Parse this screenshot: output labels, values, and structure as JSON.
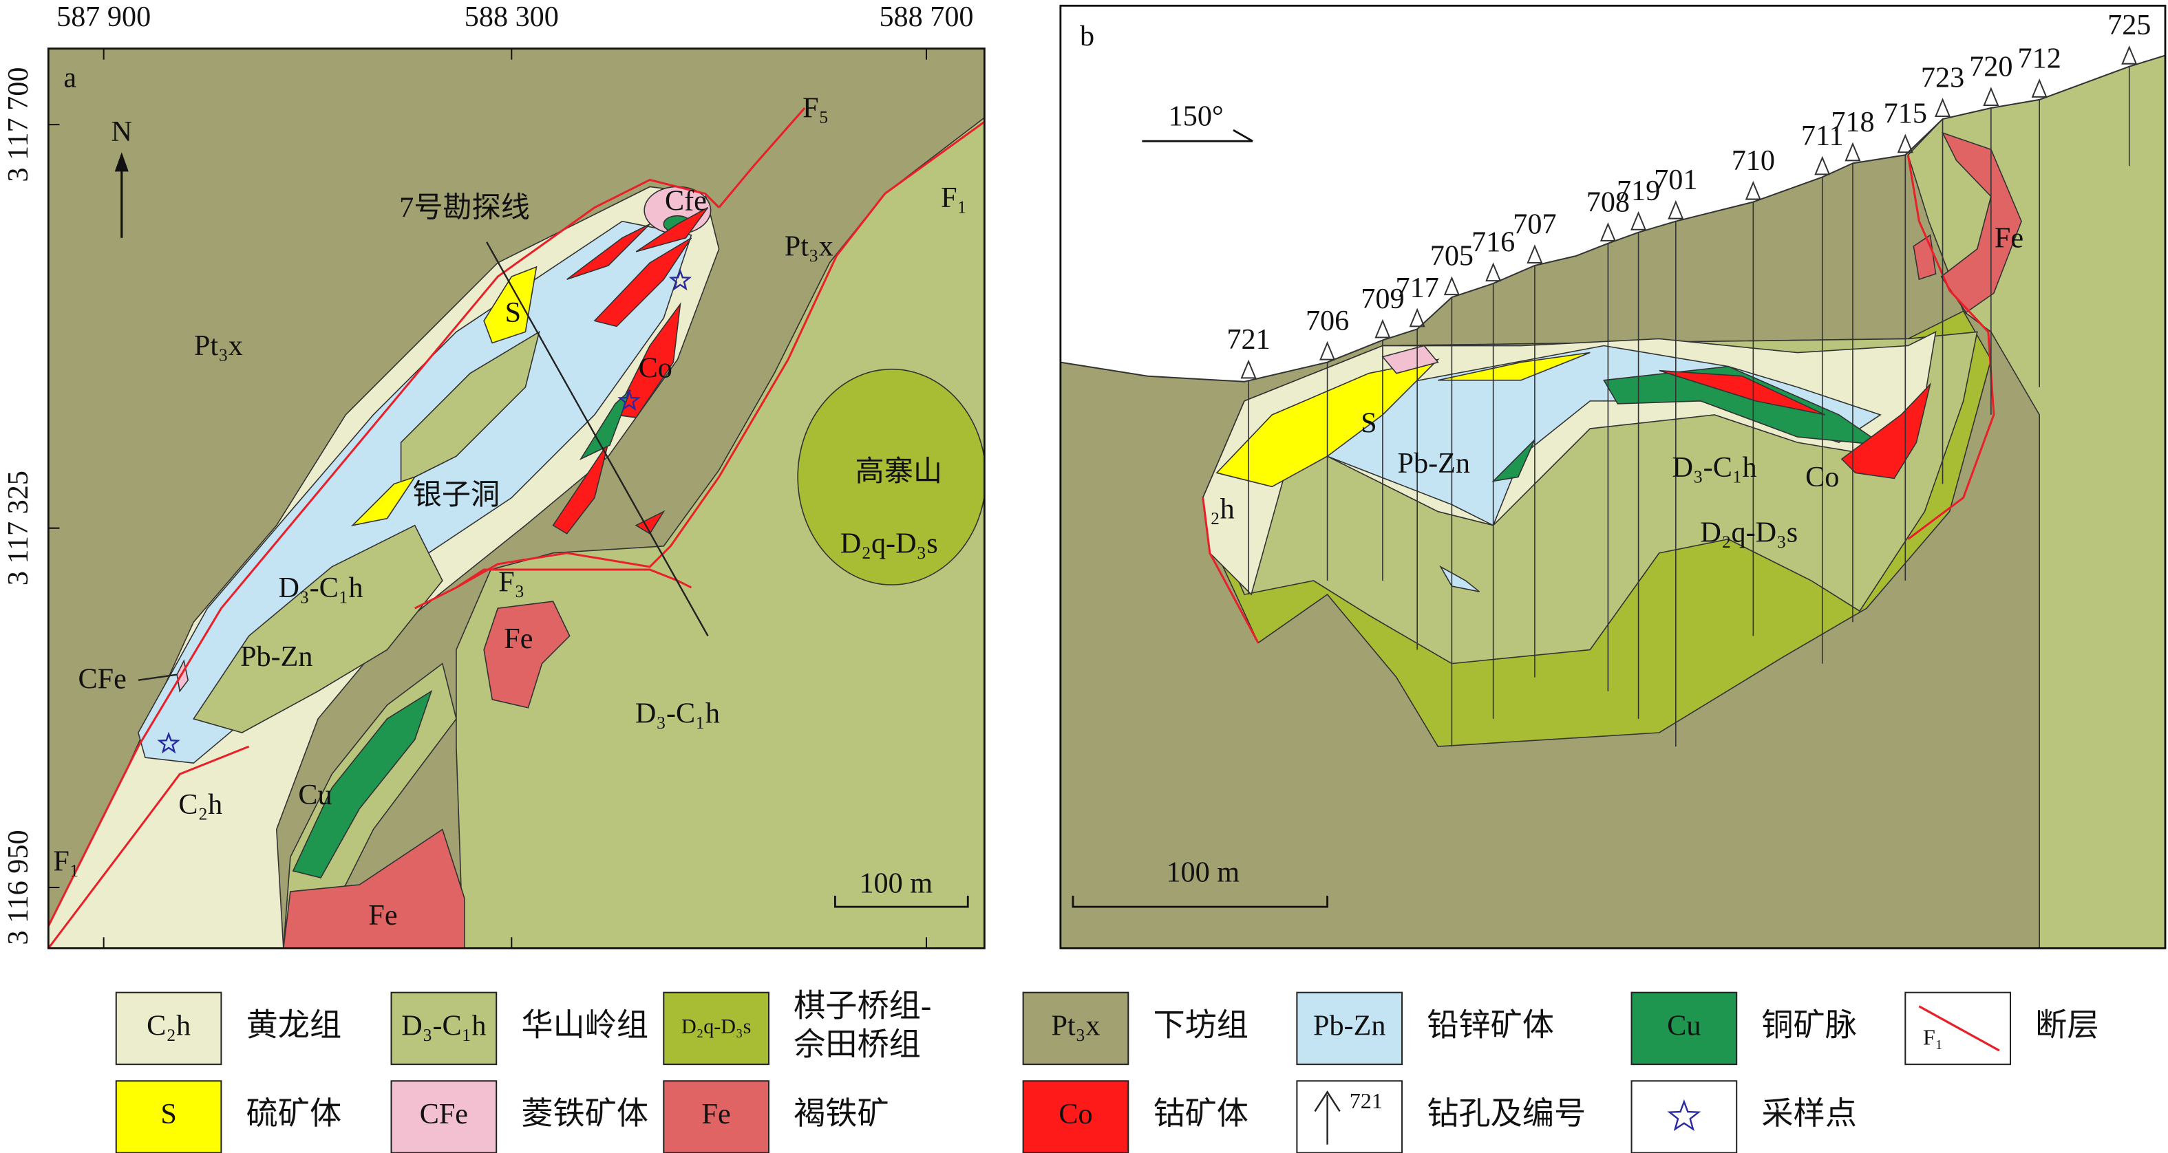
{
  "map_a": {
    "panel": "a",
    "x_coords": [
      "587 900",
      "588 300",
      "588 700"
    ],
    "y_coords": [
      "3 117 700",
      "3 117 325",
      "3 116 950"
    ],
    "north": "N",
    "labels": [
      "Pt₃x",
      "Pt₃x",
      "F₅",
      "F₁",
      "7号勘探线",
      "Cfe",
      "S",
      "Co",
      "银子洞",
      "高寨山",
      "D₂q-D₃s",
      "D₃-C₁h",
      "F₃",
      "Fe",
      "Pb-Zn",
      "CFe",
      "D₃-C₁h",
      "C₂h",
      "Cu",
      "F₁",
      "Fe"
    ],
    "scale": "100 m"
  },
  "map_b": {
    "panel": "b",
    "direction": "150°",
    "drill_holes": [
      "721",
      "706",
      "709",
      "717",
      "705",
      "716",
      "707",
      "708",
      "719",
      "701",
      "710",
      "711",
      "718",
      "715",
      "723",
      "720",
      "712",
      "725"
    ],
    "labels": [
      "Fe",
      "S",
      "Pb-Zn",
      "D₃-C₁h",
      "Co",
      "D₂q-D₃s",
      "₂h"
    ],
    "scale": "100 m"
  },
  "legend": [
    {
      "symbol": "C₂h",
      "name": "黄龙组"
    },
    {
      "symbol": "D₃-C₁h",
      "name": "华山岭组"
    },
    {
      "symbol": "D₂q-D₃s",
      "name": [
        "棋子桥组-",
        "佘田桥组"
      ]
    },
    {
      "symbol": "Pt₃x",
      "name": "下坊组"
    },
    {
      "symbol": "Pb-Zn",
      "name": "铅锌矿体"
    },
    {
      "symbol": "Cu",
      "name": "铜矿脉"
    },
    {
      "symbol": "F₁",
      "name": "断层"
    },
    {
      "symbol": "S",
      "name": "硫矿体"
    },
    {
      "symbol": "CFe",
      "name": "菱铁矿体"
    },
    {
      "symbol": "Fe",
      "name": "褐铁矿"
    },
    {
      "symbol": "Co",
      "name": "钴矿体"
    },
    {
      "symbol": "721",
      "name": "钻孔及编号"
    },
    {
      "name": "采样点"
    }
  ]
}
